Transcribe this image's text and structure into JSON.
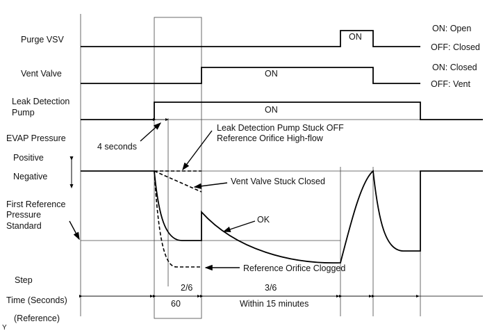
{
  "signals": {
    "purge_vsv": {
      "label": "Purge VSV",
      "on": "ON",
      "legend_on": "ON: Open",
      "legend_off": "OFF: Closed"
    },
    "vent_valve": {
      "label": "Vent Valve",
      "on": "ON",
      "legend_on": "ON: Closed",
      "legend_off": "OFF: Vent"
    },
    "pump": {
      "label_line1": "Leak Detection",
      "label_line2": "Pump",
      "on": "ON"
    },
    "evap": {
      "label": "EVAP Pressure",
      "positive": "Positive",
      "negative": "Negative"
    },
    "reference": {
      "line1": "First Reference",
      "line2": "Pressure",
      "line3": "Standard"
    }
  },
  "annotations": {
    "four_seconds": "4 seconds",
    "pump_stuck_line1": "Leak Detection Pump Stuck OFF",
    "pump_stuck_line2": "Reference Orifice High-flow",
    "vent_stuck": "Vent Valve Stuck Closed",
    "ok": "OK",
    "orifice_clogged": "Reference Orifice Clogged"
  },
  "footer": {
    "step": "Step",
    "time": "Time (Seconds)",
    "reference": "(Reference)",
    "step_2": "2/6",
    "step_3": "3/6",
    "time_2": "60",
    "time_3": "Within 15 minutes",
    "corner": "Y"
  }
}
